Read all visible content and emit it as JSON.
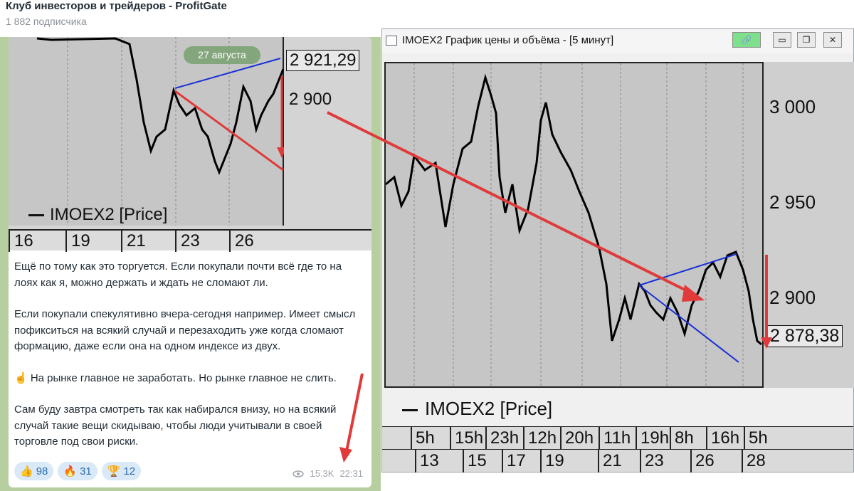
{
  "channel": {
    "title": "Клуб инвесторов и трейдеров - ProfitGate",
    "subscribers": "1 882 подписчика"
  },
  "post": {
    "chart": {
      "date_pill": "27 августа",
      "price_current": "2 921,29",
      "price_level": "2 900",
      "legend": "IMOEX2 [Price]",
      "x_ticks": [
        "16",
        "19",
        "21",
        "23",
        "26"
      ]
    },
    "paragraphs": [
      "Ещё по тому как это торгуется. Если покупали почти всё где то на лоях как я, можно держать и ждать не сломают ли.",
      "Если покупали спекулятивно вчера-сегодня например. Имеет смысл пофикситься на всякий случай и перезаходить уже когда сломают формацию, даже если она на одном индексе из двух.",
      "☝ На рынке главное не заработать. Но рынке главное не слить.",
      "Сам буду завтра смотреть так как набирался внизу, но на всякий случай такие вещи скидываю, чтобы люди учитывали в своей торговле под свои риски."
    ],
    "reactions": [
      {
        "emoji": "👍",
        "count": "98"
      },
      {
        "emoji": "🔥",
        "count": "31"
      },
      {
        "emoji": "🏆",
        "count": "12"
      }
    ],
    "views": "15.3K",
    "time": "22:31",
    "views_icon": "eye-icon"
  },
  "window": {
    "title": "IMOEX2 График цены и объёма - [5 минут]",
    "price_labels": [
      "3 000",
      "2 950",
      "2 900"
    ],
    "price_current": "2 878,38",
    "legend": "IMOEX2 [Price]",
    "time_ticks": [
      "5h",
      "15h",
      "23h",
      "12h",
      "20h",
      "11h",
      "19h",
      "8h",
      "16h",
      "5h"
    ],
    "date_ticks": [
      "13",
      "15",
      "17",
      "19",
      "21",
      "23",
      "26",
      "28"
    ],
    "buttons": {
      "link": "🔗",
      "minimize": "▭",
      "restore": "❐",
      "close": "✕"
    }
  },
  "colors": {
    "arrow": "#e03a3a",
    "trendline": "#1a2fd6",
    "price_line": "#000000",
    "plot_bg": "#c6c6c6",
    "telegram_bg": "#b7cfa0"
  }
}
